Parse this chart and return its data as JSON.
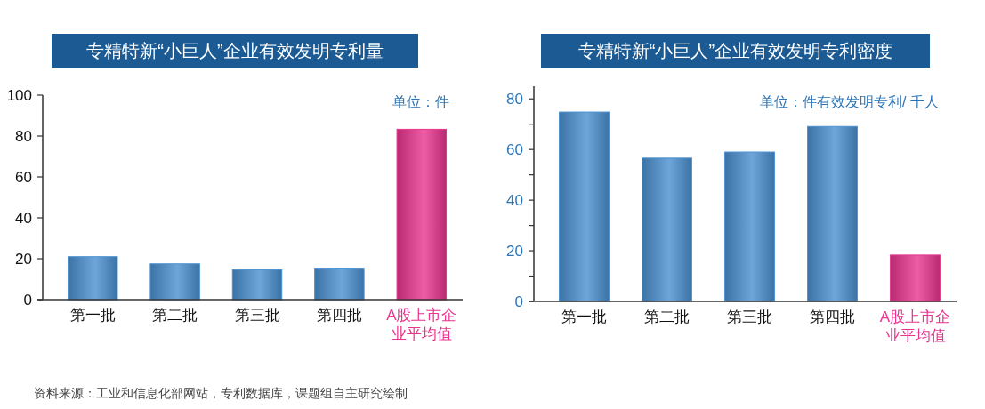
{
  "chart_data": [
    {
      "type": "bar",
      "title": "专精特新“小巨人”企业有效发明专利量",
      "categories": [
        "第一批",
        "第二批",
        "第三批",
        "第四批",
        "A股上市企业平均值"
      ],
      "values": [
        21.0,
        17.5,
        14.6,
        15.4,
        83.3
      ],
      "colors": [
        "#4a90d0",
        "#4a90d0",
        "#4a90d0",
        "#4a90d0",
        "#e8348e"
      ],
      "ylim": [
        0,
        100
      ],
      "yticks": [
        0,
        20,
        40,
        60,
        80,
        100
      ],
      "grid": false,
      "annotations": [
        "单位：件",
        "资料来源：工业和信息化部网站，专利数据库，课题组自主研究绘制"
      ]
    },
    {
      "type": "bar",
      "title": "专精特新“小巨人”企业有效发明专利密度",
      "categories": [
        "第一批",
        "第二批",
        "第三批",
        "第四批",
        "A股上市企业平均值"
      ],
      "values": [
        74.8,
        56.6,
        59.0,
        69.1,
        18.3
      ],
      "colors": [
        "#4a90d0",
        "#4a90d0",
        "#4a90d0",
        "#4a90d0",
        "#e8348e"
      ],
      "ylim": [
        0,
        85
      ],
      "yticks": [
        0,
        {
          "value": 10,
          "label": null
        },
        20,
        {
          "value": 30,
          "label": null
        },
        40,
        {
          "value": 50,
          "label": null
        },
        60,
        {
          "value": 70,
          "label": null
        },
        80
      ],
      "grid": false,
      "annotations": [
        "单位：件有效发明专利/ 千人"
      ]
    }
  ]
}
